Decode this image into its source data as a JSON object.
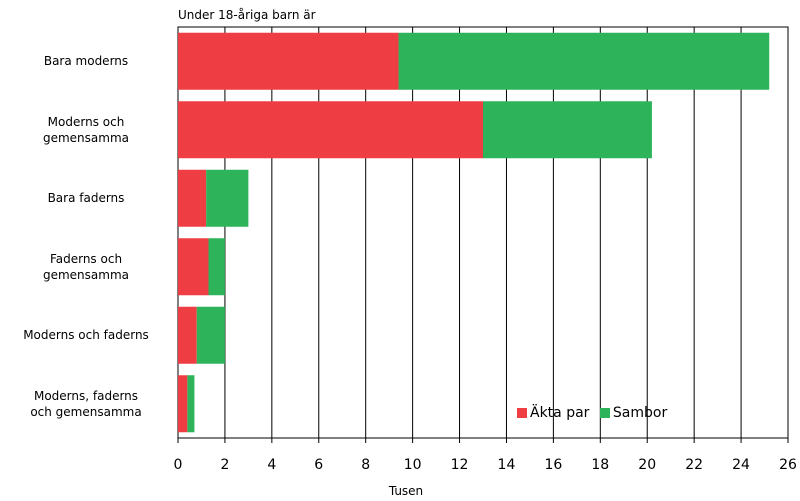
{
  "chart_data": {
    "type": "bar",
    "orientation": "horizontal",
    "stacked": true,
    "title": "Under 18-åriga barn är",
    "xlabel": "Tusen",
    "ylabel": "",
    "xlim": [
      0,
      26
    ],
    "xticks": [
      "0",
      "2",
      "4",
      "6",
      "8",
      "10",
      "12",
      "14",
      "16",
      "18",
      "20",
      "22",
      "24",
      "26"
    ],
    "grid": "vertical",
    "legend_position": "bottom-right",
    "categories": [
      [
        "Bara moderns"
      ],
      [
        "Moderns och",
        "gemensamma"
      ],
      [
        "Bara faderns"
      ],
      [
        "Faderns och",
        "gemensamma"
      ],
      [
        "Moderns och faderns"
      ],
      [
        "Moderns, faderns",
        "och gemensamma"
      ]
    ],
    "series": [
      {
        "name": "Äkta par",
        "color": "#ee3e44",
        "values": [
          9.4,
          13.0,
          1.2,
          1.3,
          0.8,
          0.4
        ]
      },
      {
        "name": "Sambor",
        "color": "#2db45a",
        "values": [
          15.8,
          7.2,
          1.8,
          0.7,
          1.2,
          0.3
        ]
      }
    ]
  }
}
